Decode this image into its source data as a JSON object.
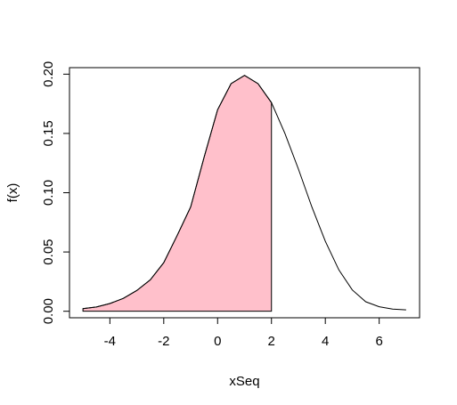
{
  "chart_data": {
    "type": "area",
    "xlabel": "xSeq",
    "ylabel": "f(x)",
    "xlim": [
      -5.5,
      7.5
    ],
    "ylim": [
      -0.0055,
      0.2055
    ],
    "x_ticks": [
      -4,
      -2,
      0,
      2,
      4,
      6
    ],
    "x_tick_labels": [
      "-4",
      "-2",
      "0",
      "2",
      "4",
      "6"
    ],
    "y_ticks": [
      0.0,
      0.05,
      0.1,
      0.15,
      0.2
    ],
    "y_tick_labels": [
      "0.00",
      "0.05",
      "0.10",
      "0.15",
      "0.20"
    ],
    "grid": false,
    "curve": {
      "x": [
        -5.0,
        -4.5,
        -4.0,
        -3.5,
        -3.0,
        -2.5,
        -2.0,
        -1.5,
        -1.0,
        -0.5,
        0.0,
        0.5,
        1.0,
        1.5,
        2.0,
        2.5,
        3.0,
        3.5,
        4.0,
        4.5,
        5.0,
        5.5,
        6.0,
        6.5,
        7.0
      ],
      "y": [
        0.0022,
        0.0036,
        0.0065,
        0.0109,
        0.0175,
        0.0265,
        0.041,
        0.064,
        0.088,
        0.13,
        0.17,
        0.192,
        0.199,
        0.192,
        0.176,
        0.15,
        0.12,
        0.088,
        0.059,
        0.035,
        0.018,
        0.008,
        0.0038,
        0.0018,
        0.0012
      ]
    },
    "shaded_region": {
      "from": -5.0,
      "to": 2.0,
      "color": "#ffc0cb"
    }
  }
}
